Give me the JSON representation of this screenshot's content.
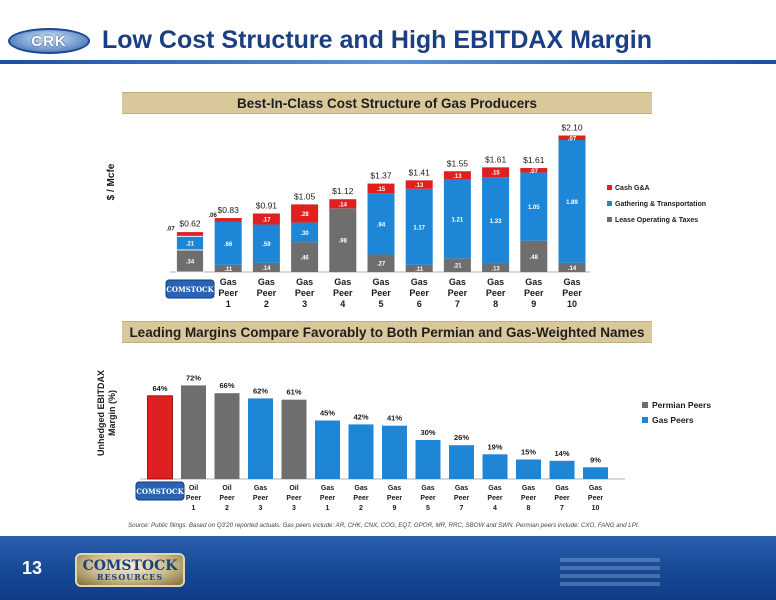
{
  "header": {
    "title": "Low Cost Structure and High EBITDAX Margin",
    "logo_text": "CRK"
  },
  "colors": {
    "brand_blue": "#1b3f82",
    "red": "#e02020",
    "blue": "#1e86d6",
    "gray": "#6e6e6e",
    "banner": "#d9c89a"
  },
  "chart_data": [
    {
      "type": "bar",
      "stacked": true,
      "title": "Best-In-Class Cost Structure of Gas Producers",
      "ylabel": "$ / Mcfe",
      "company_logo": "COMSTOCK",
      "categories": [
        [
          "",
          ""
        ],
        [
          "Gas",
          "Peer",
          "1"
        ],
        [
          "Gas",
          "Peer",
          "2"
        ],
        [
          "Gas",
          "Peer",
          "3"
        ],
        [
          "Gas",
          "Peer",
          "4"
        ],
        [
          "Gas",
          "Peer",
          "5"
        ],
        [
          "Gas",
          "Peer",
          "6"
        ],
        [
          "Gas",
          "Peer",
          "7"
        ],
        [
          "Gas",
          "Peer",
          "8"
        ],
        [
          "Gas",
          "Peer",
          "9"
        ],
        [
          "Gas",
          "Peer",
          "10"
        ]
      ],
      "series": [
        {
          "name": "Lease Operating & Taxes",
          "color": "#6e6e6e",
          "values": [
            0.34,
            0.11,
            0.14,
            0.46,
            0.98,
            0.27,
            0.11,
            0.21,
            0.13,
            0.48,
            0.14
          ],
          "labels": [
            ".34",
            ".11",
            ".14",
            ".46",
            ".98",
            ".27",
            ".11",
            ".21",
            ".13",
            ".48",
            ".14"
          ]
        },
        {
          "name": "Gathering & Transportation",
          "color": "#1e86d6",
          "values": [
            0.21,
            0.66,
            0.59,
            0.3,
            0.0,
            0.94,
            1.17,
            1.21,
            1.33,
            1.05,
            1.89
          ],
          "labels": [
            ".21",
            ".66",
            ".59",
            ".30",
            "",
            ".94",
            "1.17",
            "1.21",
            "1.33",
            "1.05",
            "1.89"
          ]
        },
        {
          "name": "Cash G&A",
          "color": "#e02020",
          "values": [
            0.07,
            0.06,
            0.17,
            0.28,
            0.14,
            0.15,
            0.13,
            0.13,
            0.15,
            0.07,
            0.07
          ],
          "labels": [
            ".07",
            ".06",
            ".17",
            ".28",
            ".14",
            ".15",
            ".13",
            ".13",
            ".15",
            ".07",
            ".07"
          ]
        }
      ],
      "totals": [
        "$0.62",
        "$0.83",
        "$0.91",
        "$1.05",
        "$1.12",
        "$1.37",
        "$1.41",
        "$1.55",
        "$1.61",
        "$1.61",
        "$2.10"
      ],
      "ylim": [
        0,
        2.2
      ],
      "legend_position": "right"
    },
    {
      "type": "bar",
      "title": "Leading Margins Compare Favorably to Both Permian and Gas-Weighted Names",
      "ylabel": "Unhedged EBITDAX Margin (%)",
      "company_logo": "COMSTOCK",
      "categories": [
        [
          "",
          ""
        ],
        [
          "Oil",
          "Peer",
          "1"
        ],
        [
          "Oil",
          "Peer",
          "2"
        ],
        [
          "Gas",
          "Peer",
          "3"
        ],
        [
          "Oil",
          "Peer",
          "3"
        ],
        [
          "Gas",
          "Peer",
          "1"
        ],
        [
          "Gas",
          "Peer",
          "2"
        ],
        [
          "Gas",
          "Peer",
          "9"
        ],
        [
          "Gas",
          "Peer",
          "5"
        ],
        [
          "Gas",
          "Peer",
          "7"
        ],
        [
          "Gas",
          "Peer",
          "4"
        ],
        [
          "Gas",
          "Peer",
          "8"
        ],
        [
          "Gas",
          "Peer",
          "7"
        ],
        [
          "Gas",
          "Peer",
          "10"
        ]
      ],
      "values": [
        64,
        72,
        66,
        62,
        61,
        45,
        42,
        41,
        30,
        26,
        19,
        15,
        14,
        9
      ],
      "value_labels": [
        "64%",
        "72%",
        "66%",
        "62%",
        "61%",
        "45%",
        "42%",
        "41%",
        "30%",
        "26%",
        "19%",
        "15%",
        "14%",
        "9%"
      ],
      "bar_groups": [
        "company",
        "permian",
        "permian",
        "gas",
        "permian",
        "gas",
        "gas",
        "gas",
        "gas",
        "gas",
        "gas",
        "gas",
        "gas",
        "gas"
      ],
      "legend": [
        {
          "name": "Permian Peers",
          "color": "#6e6e6e"
        },
        {
          "name": "Gas Peers",
          "color": "#1e86d6"
        }
      ],
      "ylim": [
        0,
        80
      ],
      "legend_position": "right"
    }
  ],
  "source_note": "Source: Public filings.  Based on Q3'20 reported actuals. Gas peers include: AR, CHK, CNX, COG, EQT, GPOR, MR, RRC, SBOW and SWN.  Permian peers include: CXO, FANG and LPI.",
  "footer": {
    "page_number": "13",
    "logo_line1": "COMSTOCK",
    "logo_line2": "RESOURCES"
  }
}
